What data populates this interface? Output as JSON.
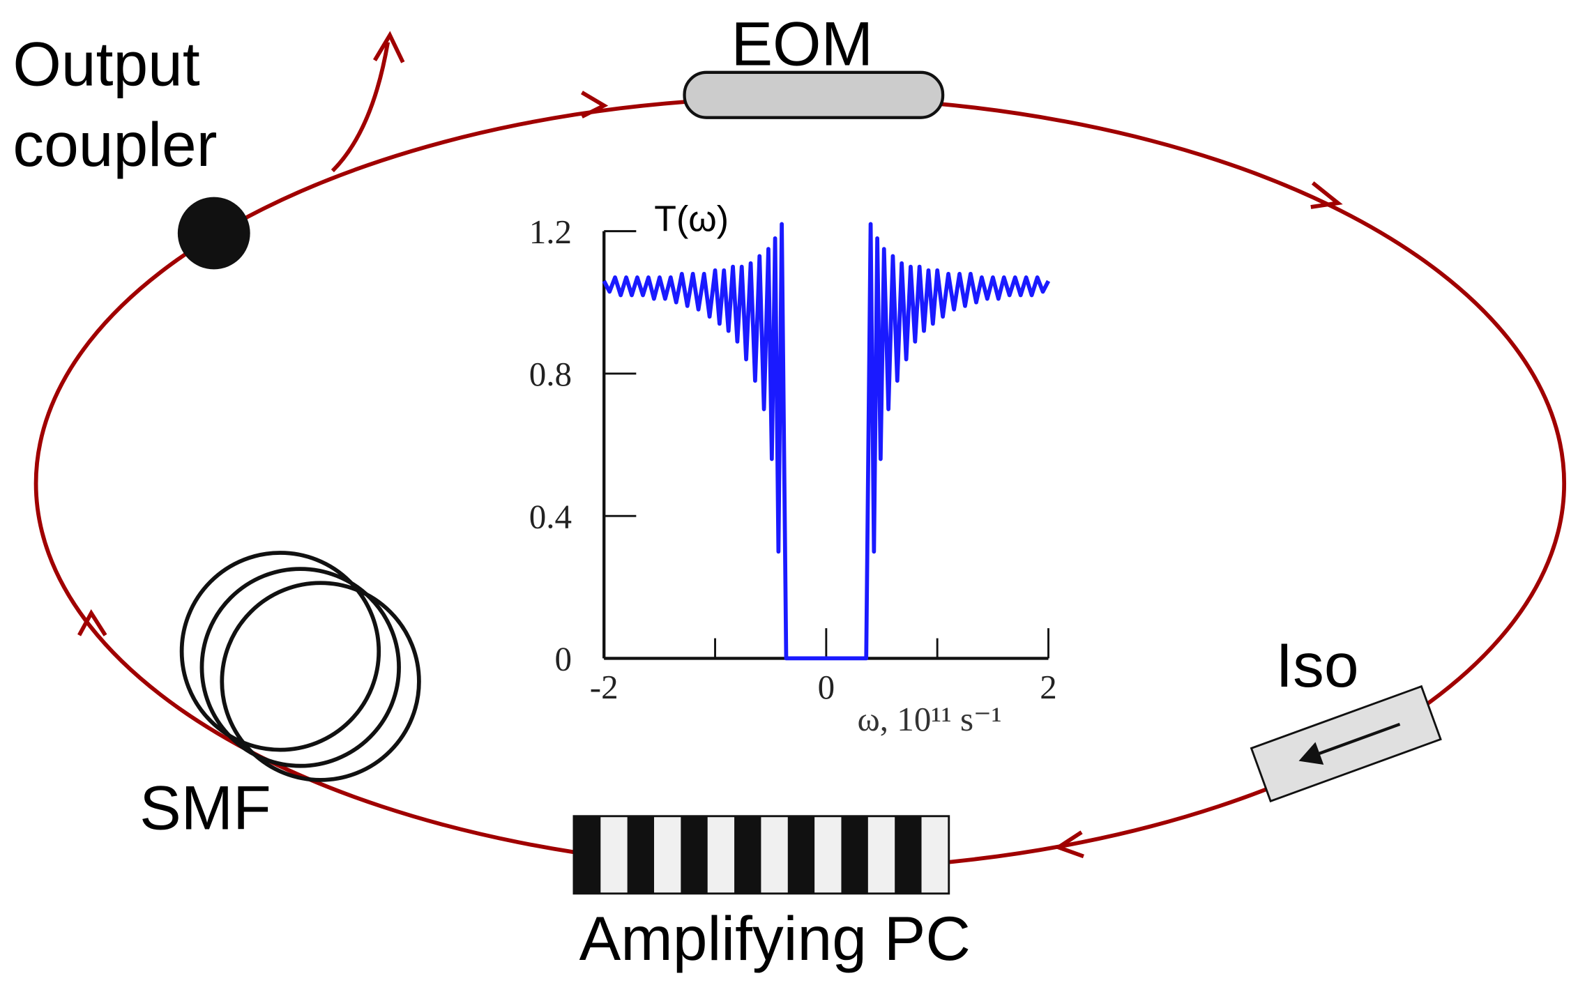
{
  "labels": {
    "output_coupler": [
      "Output",
      "coupler"
    ],
    "eom": "EOM",
    "iso": "Iso",
    "smf": "SMF",
    "amplifier": "Amplifying PC"
  },
  "chart_data": {
    "type": "line",
    "y_label": "T(ω)",
    "x_label": "ω, 10¹¹ s⁻¹",
    "color": "#1a1aff",
    "xlim": [
      -2,
      2
    ],
    "ylim": [
      0,
      1.2
    ],
    "xticks": [
      -2,
      0,
      2
    ],
    "xminor": [
      -1,
      1
    ],
    "yticks": [
      0,
      0.4,
      0.8,
      1.2
    ],
    "x": [
      -2.0,
      -1.95,
      -1.9,
      -1.85,
      -1.8,
      -1.75,
      -1.7,
      -1.65,
      -1.6,
      -1.55,
      -1.5,
      -1.45,
      -1.4,
      -1.35,
      -1.3,
      -1.25,
      -1.2,
      -1.15,
      -1.1,
      -1.05,
      -1.0,
      -0.96,
      -0.92,
      -0.88,
      -0.84,
      -0.8,
      -0.76,
      -0.72,
      -0.68,
      -0.64,
      -0.6,
      -0.56,
      -0.52,
      -0.49,
      -0.46,
      -0.43,
      -0.4,
      -0.36,
      -0.3,
      0.3,
      0.36,
      0.4,
      0.43,
      0.46,
      0.49,
      0.52,
      0.56,
      0.6,
      0.64,
      0.68,
      0.72,
      0.76,
      0.8,
      0.84,
      0.88,
      0.92,
      0.96,
      1.0,
      1.05,
      1.1,
      1.15,
      1.2,
      1.25,
      1.3,
      1.35,
      1.4,
      1.45,
      1.5,
      1.55,
      1.6,
      1.65,
      1.7,
      1.75,
      1.8,
      1.85,
      1.9,
      1.95,
      2.0
    ],
    "values": [
      1.06,
      1.03,
      1.07,
      1.02,
      1.07,
      1.02,
      1.07,
      1.02,
      1.07,
      1.01,
      1.07,
      1.01,
      1.07,
      1.0,
      1.08,
      0.99,
      1.08,
      0.98,
      1.08,
      0.96,
      1.09,
      0.94,
      1.09,
      0.92,
      1.1,
      0.89,
      1.1,
      0.84,
      1.11,
      0.78,
      1.13,
      0.7,
      1.15,
      0.56,
      1.18,
      0.3,
      1.22,
      0,
      0,
      0,
      0,
      1.22,
      0.3,
      1.18,
      0.56,
      1.15,
      0.7,
      1.13,
      0.78,
      1.11,
      0.84,
      1.1,
      0.89,
      1.1,
      0.92,
      1.09,
      0.94,
      1.09,
      0.96,
      1.08,
      0.98,
      1.08,
      0.99,
      1.08,
      1.0,
      1.07,
      1.01,
      1.07,
      1.01,
      1.07,
      1.02,
      1.07,
      1.02,
      1.07,
      1.02,
      1.07,
      1.03,
      1.06
    ]
  }
}
